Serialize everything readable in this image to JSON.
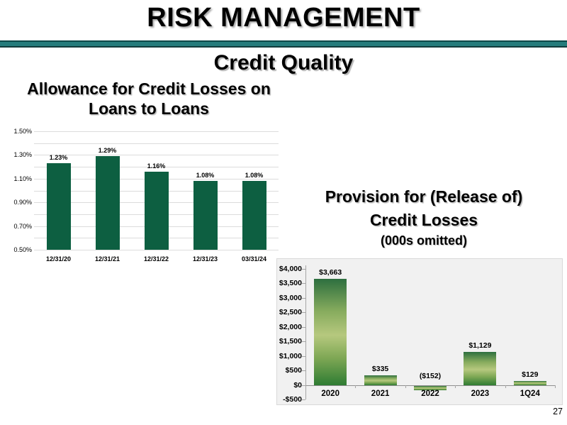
{
  "slide": {
    "title": "RISK MANAGEMENT",
    "subtitle": "Credit Quality",
    "page_number": "27",
    "accent_color": "#257c7c"
  },
  "chart_data": [
    {
      "type": "bar",
      "title": "Allowance for Credit Losses on Loans to Loans",
      "title_display": "Allowance for Credit Losses on\nLoans to Loans",
      "categories": [
        "12/31/20",
        "12/31/21",
        "12/31/22",
        "12/31/23",
        "03/31/24"
      ],
      "values": [
        1.23,
        1.29,
        1.16,
        1.08,
        1.08
      ],
      "value_labels": [
        "1.23%",
        "1.29%",
        "1.16%",
        "1.08%",
        "1.08%"
      ],
      "xlabel": "",
      "ylabel": "",
      "ylim": [
        0.5,
        1.5
      ],
      "ytick_labels": [
        "1.50%",
        "1.30%",
        "1.10%",
        "0.90%",
        "0.70%",
        "0.50%"
      ],
      "gridline_step": 0.1,
      "grid": true,
      "legend": false,
      "bar_color": "#0d5f41"
    },
    {
      "type": "bar",
      "title": "Provision for (Release of) Credit Losses",
      "title_display": "Provision for (Release of)\nCredit Losses",
      "subtitle": "(000s omitted)",
      "categories": [
        "2020",
        "2021",
        "2022",
        "2023",
        "1Q24"
      ],
      "values": [
        3663,
        335,
        -152,
        1129,
        129
      ],
      "value_labels": [
        "$3,663",
        "$335",
        "($152)",
        "$1,129",
        "$129"
      ],
      "xlabel": "",
      "ylabel": "",
      "ylim": [
        -500,
        4000
      ],
      "ytick_step": 500,
      "ytick_labels": [
        "$4,000",
        "$3,500",
        "$3,000",
        "$2,500",
        "$2,000",
        "$1,500",
        "$1,000",
        "$500",
        "$0",
        "-$500"
      ],
      "grid": false,
      "legend": false,
      "panel_bg": "#f1f1f1",
      "bar_gradient_stops": [
        {
          "color": "#2d6f3f",
          "pos": 0
        },
        {
          "color": "#86ab5d",
          "pos": 30
        },
        {
          "color": "#b6c87e",
          "pos": 53
        },
        {
          "color": "#7fa855",
          "pos": 74
        },
        {
          "color": "#2f7c33",
          "pos": 100
        }
      ]
    }
  ]
}
